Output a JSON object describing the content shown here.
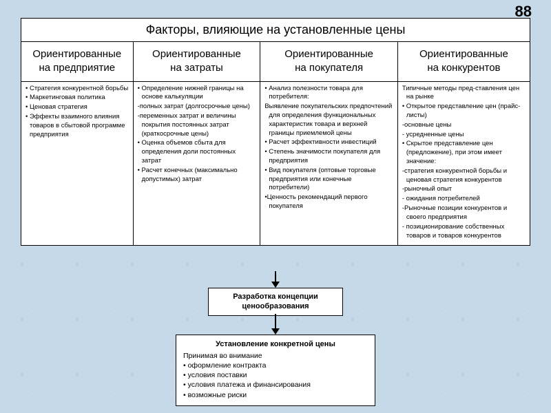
{
  "page_number": "88",
  "colors": {
    "background": "#c5d9e8",
    "box_bg": "#ffffff",
    "border": "#000000",
    "text": "#000000"
  },
  "table": {
    "title": "Факторы, влияющие на установленные цены",
    "cols": [
      {
        "header_l1": "Ориентированные",
        "header_l2": "на предприятие"
      },
      {
        "header_l1": "Ориентированные",
        "header_l2": "на затраты"
      },
      {
        "header_l1": "Ориентированные",
        "header_l2": "на покупателя"
      },
      {
        "header_l1": "Ориентированные",
        "header_l2": "на конкурентов"
      }
    ],
    "cells": {
      "c0": [
        "• Стратегия конкурентной борьбы",
        "• Маркетинговая политика",
        "• Ценовая стратегия",
        "• Эффекты взаимного влияния товаров в сбытовой программе предприятия"
      ],
      "c1": [
        "• Определение нижней границы на основе калькуляции",
        "-полных затрат (долгосрочные цены)",
        "-переменных затрат и величины покрытия постоянных затрат (краткосрочные цены)",
        "• Оценка объемов сбыта для определения доли постоянных затрат",
        "• Расчет конечных (максимально допустимых) затрат"
      ],
      "c2": [
        "• Анализ полезности товара для потребителя:",
        "Выявление покупательских предпочтений для определения функциональных характеристик товара и верхней границы приемлемой цены",
        "• Расчет эффективности инвестиций",
        "• Степень значимости покупателя для предприятия",
        "• Вид покупателя (оптовые торговые предприятия или конечные потребители)",
        "•Ценность рекомендаций первого покупателя"
      ],
      "c3": [
        "Типичные методы пред-ставления цен на рынке",
        "• Открытое представление цен (прайс-листы)",
        "-основные цены",
        "- усредненные цены",
        "• Скрытое представление цен (предложение), при этом имеет значение:",
        "-стратегия конкурентной борьбы и ценовая стратегия конкурентов",
        "-рыночный опыт",
        "- ожидания потребителей",
        "-Рыночные позиции конкурентов и своего предприятия",
        "- позиционирование собственных товаров и товаров конкурентов"
      ]
    }
  },
  "box_dev": {
    "l1": "Разработка концепции",
    "l2": "ценообразования"
  },
  "box_final": {
    "header": "Установление конкретной цены",
    "lines": [
      "Принимая во внимание",
      "• оформление контракта",
      "• условия поставки",
      "• условия платежа и финансирования",
      "• возможные риски"
    ]
  }
}
